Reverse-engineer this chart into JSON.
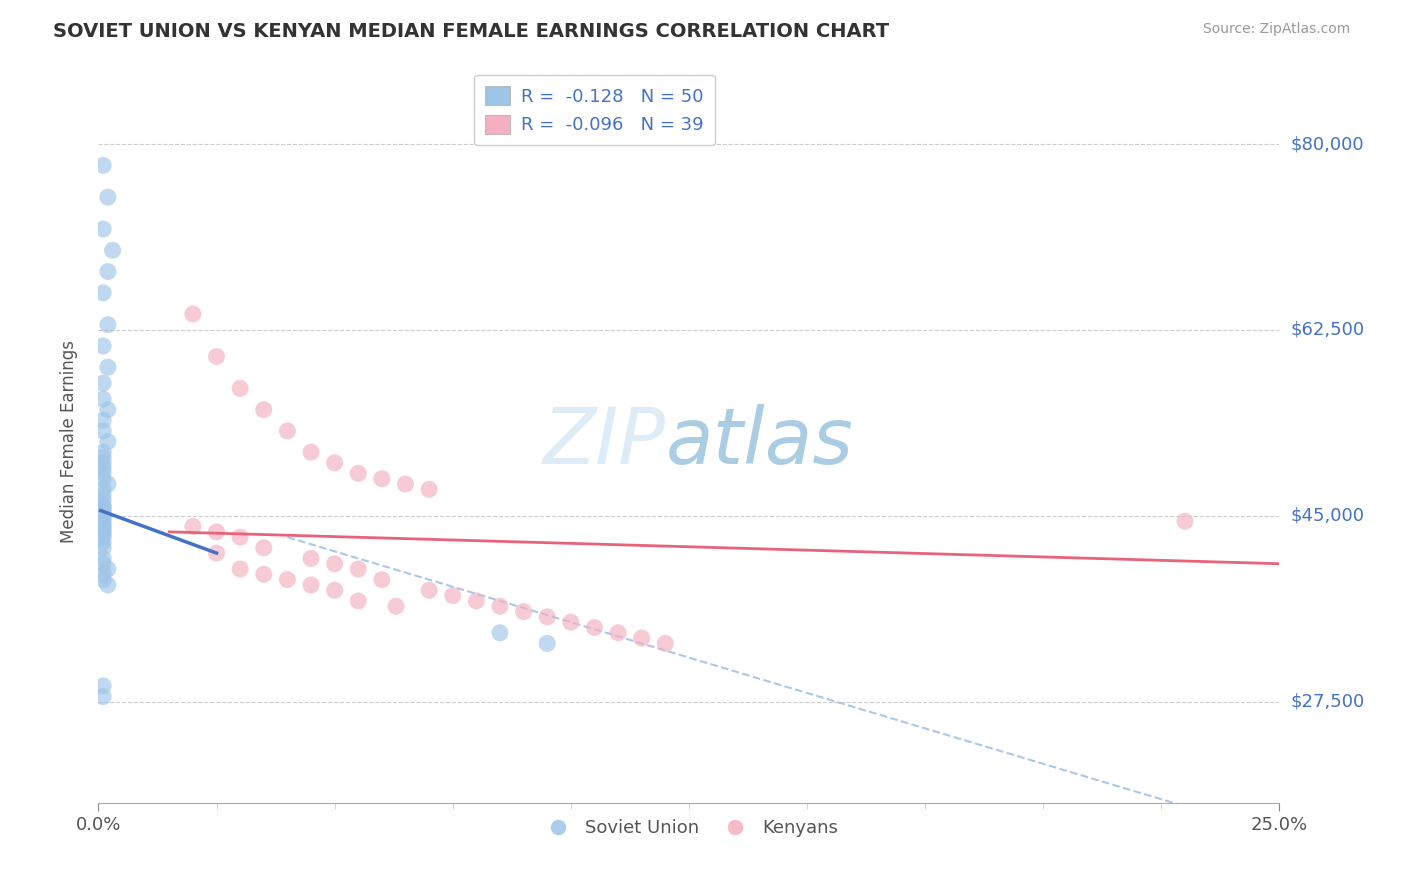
{
  "title": "SOVIET UNION VS KENYAN MEDIAN FEMALE EARNINGS CORRELATION CHART",
  "source": "Source: ZipAtlas.com",
  "ylabel": "Median Female Earnings",
  "xlim": [
    0.0,
    0.25
  ],
  "ylim": [
    18000,
    86000
  ],
  "yticks": [
    27500,
    45000,
    62500,
    80000
  ],
  "ytick_labels": [
    "$27,500",
    "$45,000",
    "$62,500",
    "$80,000"
  ],
  "xticks": [
    0.0,
    0.25
  ],
  "xtick_labels": [
    "0.0%",
    "25.0%"
  ],
  "grid_color": "#cccccc",
  "background_color": "#ffffff",
  "soviet_color": "#9ec4e8",
  "kenyan_color": "#f4afc0",
  "soviet_line_color": "#4472c4",
  "kenyan_line_color": "#e8637a",
  "dashed_line_color": "#aac8e8",
  "legend_label_1": "Soviet Union",
  "legend_label_2": "Kenyans",
  "title_color": "#333333",
  "axis_label_color": "#555555",
  "right_tick_color": "#4472c4",
  "soviet_points_x": [
    0.001,
    0.002,
    0.001,
    0.003,
    0.002,
    0.001,
    0.002,
    0.001,
    0.002,
    0.001,
    0.001,
    0.002,
    0.001,
    0.001,
    0.002,
    0.001,
    0.001,
    0.001,
    0.001,
    0.001,
    0.001,
    0.002,
    0.001,
    0.001,
    0.001,
    0.001,
    0.001,
    0.001,
    0.001,
    0.001,
    0.001,
    0.001,
    0.001,
    0.001,
    0.001,
    0.001,
    0.001,
    0.001,
    0.001,
    0.001,
    0.002,
    0.002,
    0.085,
    0.095,
    0.001,
    0.001,
    0.001,
    0.001,
    0.001,
    0.001
  ],
  "soviet_points_y": [
    78000,
    75000,
    72000,
    70000,
    68000,
    66000,
    63000,
    61000,
    59000,
    57500,
    56000,
    55000,
    54000,
    53000,
    52000,
    51000,
    50500,
    50000,
    49500,
    49000,
    48500,
    48000,
    47500,
    47000,
    46500,
    46000,
    45800,
    45500,
    45200,
    45000,
    44800,
    44500,
    44200,
    44000,
    43700,
    43500,
    43200,
    43000,
    42500,
    42000,
    40000,
    38500,
    34000,
    33000,
    41000,
    40500,
    39500,
    39000,
    29000,
    28000
  ],
  "kenyan_points_x": [
    0.02,
    0.025,
    0.03,
    0.035,
    0.04,
    0.045,
    0.05,
    0.055,
    0.06,
    0.065,
    0.07,
    0.02,
    0.025,
    0.03,
    0.035,
    0.045,
    0.05,
    0.055,
    0.06,
    0.07,
    0.075,
    0.08,
    0.085,
    0.09,
    0.095,
    0.1,
    0.105,
    0.11,
    0.115,
    0.12,
    0.025,
    0.03,
    0.035,
    0.04,
    0.045,
    0.05,
    0.055,
    0.063,
    0.23
  ],
  "kenyan_points_y": [
    64000,
    60000,
    57000,
    55000,
    53000,
    51000,
    50000,
    49000,
    48500,
    48000,
    47500,
    44000,
    43500,
    43000,
    42000,
    41000,
    40500,
    40000,
    39000,
    38000,
    37500,
    37000,
    36500,
    36000,
    35500,
    35000,
    34500,
    34000,
    33500,
    33000,
    41500,
    40000,
    39500,
    39000,
    38500,
    38000,
    37000,
    36500,
    44500
  ],
  "blue_line_x": [
    0.0005,
    0.025
  ],
  "blue_line_y": [
    45500,
    41500
  ],
  "pink_line_x": [
    0.015,
    0.25
  ],
  "pink_line_y": [
    43500,
    40500
  ],
  "dashed_line_x": [
    0.04,
    0.25
  ],
  "dashed_line_y": [
    43000,
    15000
  ]
}
